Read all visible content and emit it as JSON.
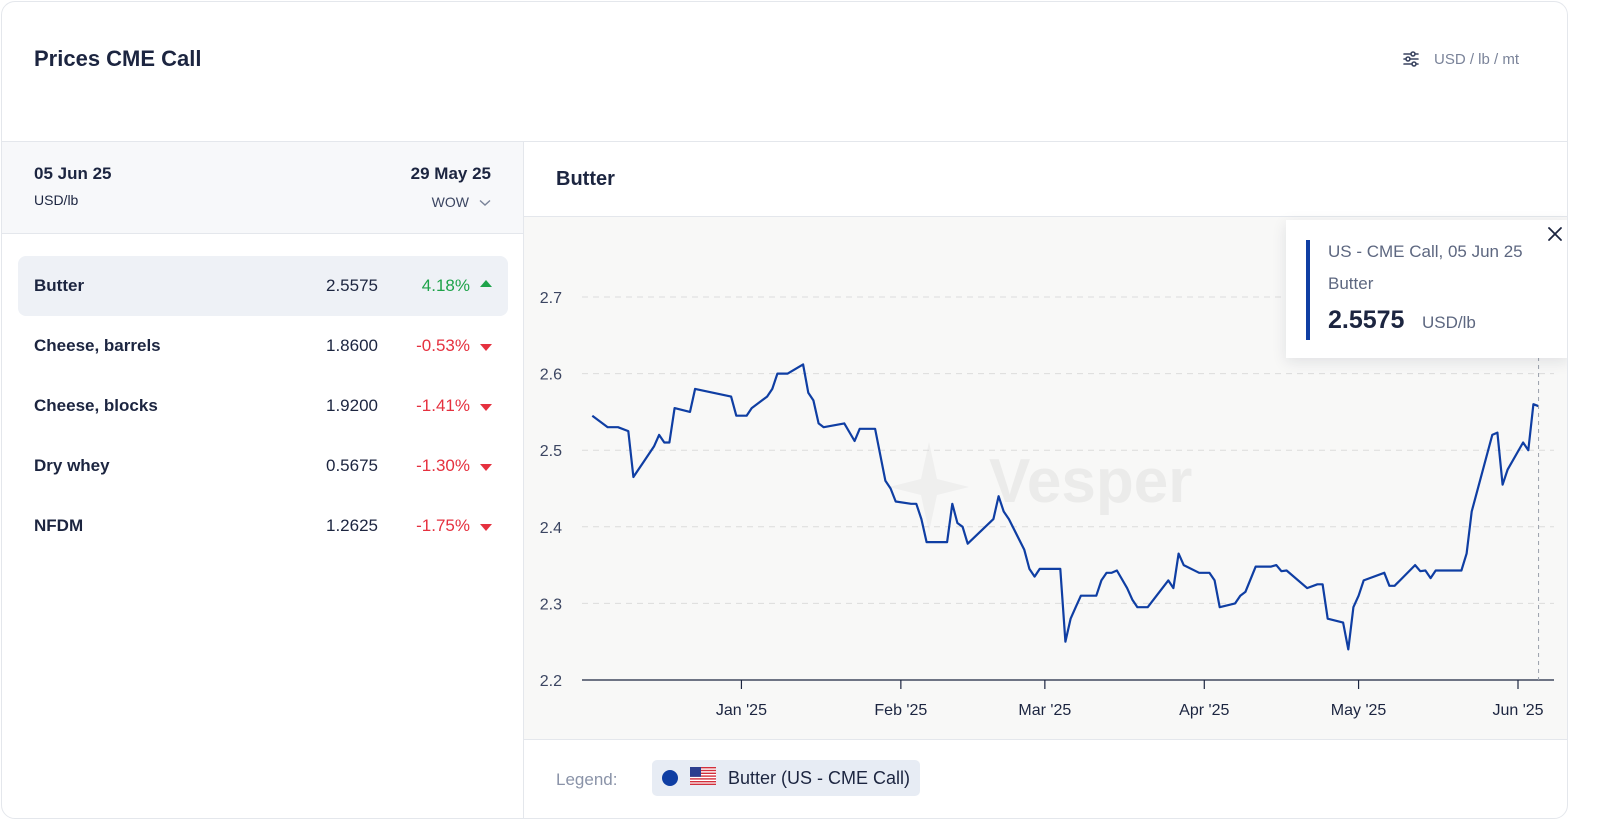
{
  "header": {
    "title": "Prices CME Call",
    "units_label": "USD / lb / mt",
    "units_icon": "sliders-icon"
  },
  "left_panel": {
    "date": "05 Jun 25",
    "unit": "USD/lb",
    "compare_date": "29 May 25",
    "compare_mode": "WOW",
    "rows": [
      {
        "name": "Butter",
        "value": "2.5575",
        "change": "4.18%",
        "direction": "up",
        "active": true
      },
      {
        "name": "Cheese, barrels",
        "value": "1.8600",
        "change": "-0.53%",
        "direction": "down",
        "active": false
      },
      {
        "name": "Cheese, blocks",
        "value": "1.9200",
        "change": "-1.41%",
        "direction": "down",
        "active": false
      },
      {
        "name": "Dry whey",
        "value": "0.5675",
        "change": "-1.30%",
        "direction": "down",
        "active": false
      },
      {
        "name": "NFDM",
        "value": "1.2625",
        "change": "-1.75%",
        "direction": "down",
        "active": false
      }
    ]
  },
  "chart_panel": {
    "title": "Butter",
    "watermark": "Vesper",
    "tooltip": {
      "line1": "US - CME Call, 05 Jun 25",
      "line2": "Butter",
      "value": "2.5575",
      "unit": "USD/lb"
    },
    "legend_label": "Legend:",
    "legend_item": "Butter (US - CME Call)"
  },
  "colors": {
    "series": "#0f3ea3",
    "up": "#1ea34a",
    "down": "#e5313f"
  },
  "chart_data": {
    "type": "line",
    "ylim": [
      2.2,
      2.75
    ],
    "yticks": [
      2.2,
      2.3,
      2.4,
      2.5,
      2.6,
      2.7
    ],
    "xlim": [
      "2024-12-01",
      "2025-06-08"
    ],
    "xticks": [
      {
        "label": "Jan '25",
        "date": "2025-01-01"
      },
      {
        "label": "Feb '25",
        "date": "2025-02-01"
      },
      {
        "label": "Mar '25",
        "date": "2025-03-01"
      },
      {
        "label": "Apr '25",
        "date": "2025-04-01"
      },
      {
        "label": "May '25",
        "date": "2025-05-01"
      },
      {
        "label": "Jun '25",
        "date": "2025-06-01"
      }
    ],
    "series": [
      {
        "points": [
          [
            "2024-12-03",
            2.545
          ],
          [
            "2024-12-06",
            2.53
          ],
          [
            "2024-12-08",
            2.53
          ],
          [
            "2024-12-10",
            2.525
          ],
          [
            "2024-12-11",
            2.465
          ],
          [
            "2024-12-13",
            2.485
          ],
          [
            "2024-12-15",
            2.505
          ],
          [
            "2024-12-16",
            2.52
          ],
          [
            "2024-12-17",
            2.51
          ],
          [
            "2024-12-18",
            2.51
          ],
          [
            "2024-12-19",
            2.555
          ],
          [
            "2024-12-22",
            2.55
          ],
          [
            "2024-12-23",
            2.58
          ],
          [
            "2024-12-30",
            2.57
          ],
          [
            "2024-12-31",
            2.545
          ],
          [
            "2025-01-02",
            2.545
          ],
          [
            "2025-01-03",
            2.555
          ],
          [
            "2025-01-06",
            2.57
          ],
          [
            "2025-01-07",
            2.58
          ],
          [
            "2025-01-08",
            2.6
          ],
          [
            "2025-01-10",
            2.6
          ],
          [
            "2025-01-13",
            2.612
          ],
          [
            "2025-01-14",
            2.575
          ],
          [
            "2025-01-15",
            2.565
          ],
          [
            "2025-01-16",
            2.535
          ],
          [
            "2025-01-17",
            2.53
          ],
          [
            "2025-01-21",
            2.535
          ],
          [
            "2025-01-23",
            2.512
          ],
          [
            "2025-01-24",
            2.528
          ],
          [
            "2025-01-27",
            2.528
          ],
          [
            "2025-01-29",
            2.46
          ],
          [
            "2025-01-30",
            2.45
          ],
          [
            "2025-01-31",
            2.433
          ],
          [
            "2025-02-03",
            2.43
          ],
          [
            "2025-02-04",
            2.43
          ],
          [
            "2025-02-05",
            2.41
          ],
          [
            "2025-02-06",
            2.38
          ],
          [
            "2025-02-10",
            2.38
          ],
          [
            "2025-02-11",
            2.43
          ],
          [
            "2025-02-12",
            2.405
          ],
          [
            "2025-02-13",
            2.4
          ],
          [
            "2025-02-14",
            2.378
          ],
          [
            "2025-02-19",
            2.41
          ],
          [
            "2025-02-20",
            2.44
          ],
          [
            "2025-02-21",
            2.42
          ],
          [
            "2025-02-22",
            2.41
          ],
          [
            "2025-02-25",
            2.37
          ],
          [
            "2025-02-26",
            2.345
          ],
          [
            "2025-02-27",
            2.335
          ],
          [
            "2025-02-28",
            2.345
          ],
          [
            "2025-03-04",
            2.345
          ],
          [
            "2025-03-05",
            2.25
          ],
          [
            "2025-03-06",
            2.28
          ],
          [
            "2025-03-07",
            2.295
          ],
          [
            "2025-03-08",
            2.31
          ],
          [
            "2025-03-11",
            2.31
          ],
          [
            "2025-03-12",
            2.33
          ],
          [
            "2025-03-13",
            2.34
          ],
          [
            "2025-03-14",
            2.34
          ],
          [
            "2025-03-15",
            2.343
          ],
          [
            "2025-03-17",
            2.32
          ],
          [
            "2025-03-18",
            2.305
          ],
          [
            "2025-03-19",
            2.295
          ],
          [
            "2025-03-21",
            2.295
          ],
          [
            "2025-03-25",
            2.33
          ],
          [
            "2025-03-26",
            2.32
          ],
          [
            "2025-03-27",
            2.365
          ],
          [
            "2025-03-28",
            2.35
          ],
          [
            "2025-03-31",
            2.34
          ],
          [
            "2025-04-02",
            2.34
          ],
          [
            "2025-04-03",
            2.33
          ],
          [
            "2025-04-04",
            2.295
          ],
          [
            "2025-04-07",
            2.3
          ],
          [
            "2025-04-08",
            2.31
          ],
          [
            "2025-04-09",
            2.315
          ],
          [
            "2025-04-11",
            2.348
          ],
          [
            "2025-04-14",
            2.348
          ],
          [
            "2025-04-15",
            2.35
          ],
          [
            "2025-04-16",
            2.342
          ],
          [
            "2025-04-17",
            2.343
          ],
          [
            "2025-04-21",
            2.32
          ],
          [
            "2025-04-23",
            2.325
          ],
          [
            "2025-04-24",
            2.325
          ],
          [
            "2025-04-25",
            2.28
          ],
          [
            "2025-04-28",
            2.275
          ],
          [
            "2025-04-29",
            2.24
          ],
          [
            "2025-04-30",
            2.295
          ],
          [
            "2025-05-01",
            2.31
          ],
          [
            "2025-05-02",
            2.33
          ],
          [
            "2025-05-06",
            2.34
          ],
          [
            "2025-05-07",
            2.323
          ],
          [
            "2025-05-08",
            2.323
          ],
          [
            "2025-05-12",
            2.35
          ],
          [
            "2025-05-13",
            2.342
          ],
          [
            "2025-05-14",
            2.343
          ],
          [
            "2025-05-15",
            2.333
          ],
          [
            "2025-05-16",
            2.343
          ],
          [
            "2025-05-21",
            2.343
          ],
          [
            "2025-05-22",
            2.365
          ],
          [
            "2025-05-23",
            2.42
          ],
          [
            "2025-05-27",
            2.52
          ],
          [
            "2025-05-28",
            2.523
          ],
          [
            "2025-05-29",
            2.455
          ],
          [
            "2025-05-30",
            2.475
          ],
          [
            "2025-06-02",
            2.51
          ],
          [
            "2025-06-03",
            2.5
          ],
          [
            "2025-06-04",
            2.56
          ],
          [
            "2025-06-05",
            2.5575
          ]
        ]
      }
    ]
  }
}
